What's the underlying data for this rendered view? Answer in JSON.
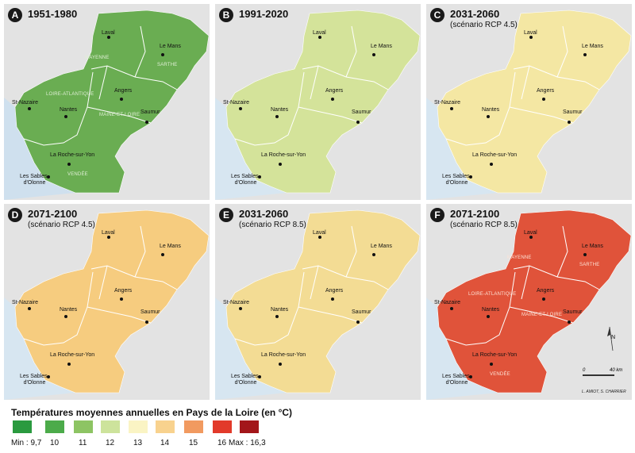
{
  "panels": [
    {
      "letter": "A",
      "title": "1951-1980",
      "subtitle": "",
      "fill": "#6aad52",
      "sea": "#cfe0ee",
      "deptColor": "#e0efd6",
      "showDepts": true
    },
    {
      "letter": "B",
      "title": "1991-2020",
      "subtitle": "",
      "fill": "#d4e39a",
      "sea": "#d7e6f1",
      "deptColor": "",
      "showDepts": false
    },
    {
      "letter": "C",
      "title": "2031-2060",
      "subtitle": "(scénario RCP 4.5)",
      "fill": "#f4e7a3",
      "sea": "#d7e6f1",
      "deptColor": "",
      "showDepts": false
    },
    {
      "letter": "D",
      "title": "2071-2100",
      "subtitle": "(scénario RCP 4.5)",
      "fill": "#f6cc7f",
      "sea": "#d7e6f1",
      "deptColor": "",
      "showDepts": false
    },
    {
      "letter": "E",
      "title": "2031-2060",
      "subtitle": "(scénario RCP 8.5)",
      "fill": "#f3dc94",
      "sea": "#d7e6f1",
      "deptColor": "",
      "showDepts": false
    },
    {
      "letter": "F",
      "title": "2071-2100",
      "subtitle": "(scénario RCP 8.5)",
      "fill": "#e0533a",
      "sea": "#d7e6f1",
      "deptColor": "#fde3d6",
      "showDepts": true
    }
  ],
  "cities": [
    "Laval",
    "Le Mans",
    "Angers",
    "St-Nazaire",
    "Nantes",
    "Saumur",
    "La Roche-sur-Yon",
    "Les Sables-\nd'Olonne"
  ],
  "departments": [
    "MAYENNE",
    "SARTHE",
    "LOIRE-ATLANTIQUE",
    "MAINE-ET-LOIRE",
    "VENDÉE"
  ],
  "scale": {
    "start": "0",
    "end": "40 km",
    "north": "N"
  },
  "credits": "L. AMIOT, S. CHARRIER",
  "legend": {
    "title": "Températures  moyennes  annuelles  en Pays de la Loire (en °C)",
    "items": [
      {
        "label": "Min : 9,7",
        "color": "#2a9a3f"
      },
      {
        "label": "10",
        "color": "#4cab4a"
      },
      {
        "label": "11",
        "color": "#8dc463"
      },
      {
        "label": "12",
        "color": "#cde39c"
      },
      {
        "label": "13",
        "color": "#faf4c4"
      },
      {
        "label": "14",
        "color": "#f8d28e"
      },
      {
        "label": "15",
        "color": "#f19a60"
      },
      {
        "label": "16",
        "color": "#e23a2a"
      },
      {
        "label": "Max : 16,3",
        "color": "#a3161a"
      }
    ]
  }
}
